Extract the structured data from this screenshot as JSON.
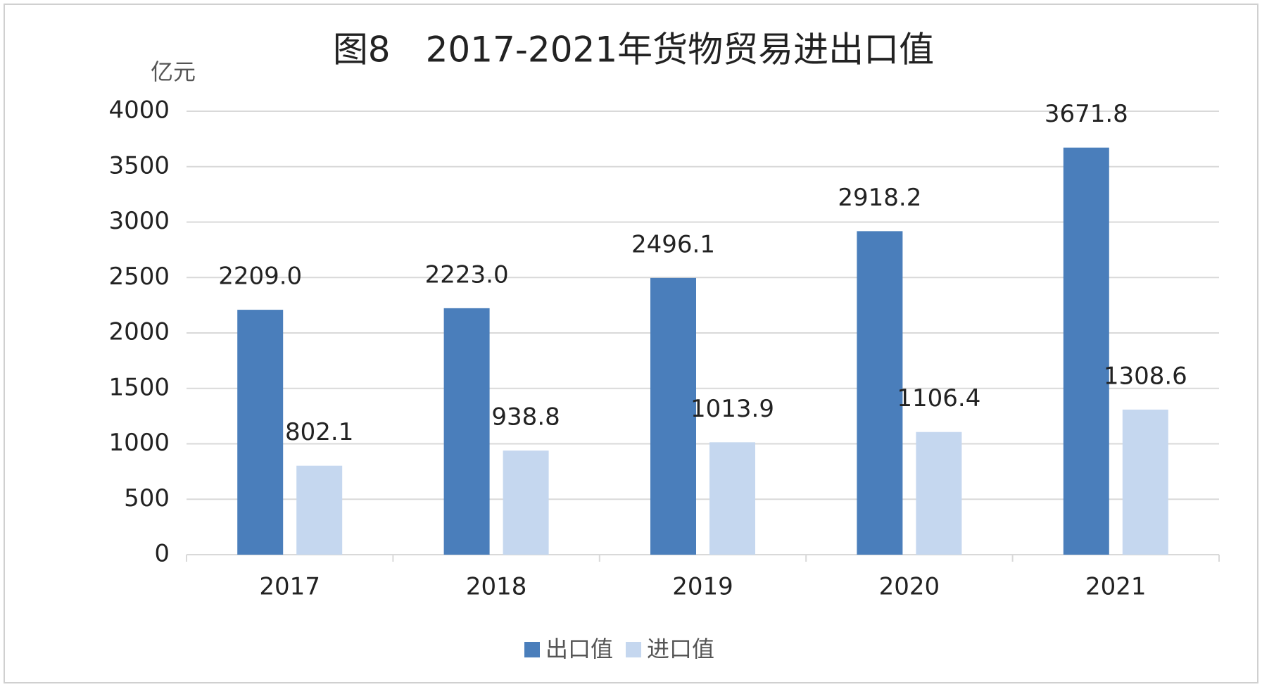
{
  "chart_data": {
    "type": "bar",
    "title": "图8　2017-2021年货物贸易进出口值",
    "y_label": "亿元",
    "categories": [
      "2017",
      "2018",
      "2019",
      "2020",
      "2021"
    ],
    "series": [
      {
        "name": "出口值",
        "color": "#4a7ebb",
        "values": [
          2209.0,
          2223.0,
          2496.1,
          2918.2,
          3671.8
        ],
        "value_labels": [
          "2209.0",
          "2223.0",
          "2496.1",
          "2918.2",
          "3671.8"
        ]
      },
      {
        "name": "进口值",
        "color": "#c5d7ef",
        "values": [
          802.1,
          938.8,
          1013.9,
          1106.4,
          1308.6
        ],
        "value_labels": [
          "802.1",
          "938.8",
          "1013.9",
          "1106.4",
          "1308.6"
        ]
      }
    ],
    "ylim": [
      0,
      4000
    ],
    "yticks": [
      0,
      500,
      1000,
      1500,
      2000,
      2500,
      3000,
      3500,
      4000
    ],
    "grid": true,
    "legend": "bottom"
  }
}
